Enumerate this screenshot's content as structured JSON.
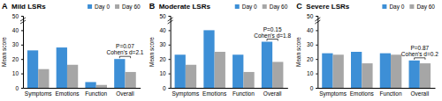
{
  "chart_data": [
    {
      "type": "bar",
      "panel_label": "A",
      "title": "Mild LSRs",
      "y_label": "Mean score",
      "categories": [
        "Symptoms",
        "Emotions",
        "Function",
        "Overall"
      ],
      "series": [
        {
          "name": "Day 0",
          "color": "#3d8fd6",
          "values": [
            26,
            28,
            4,
            20
          ]
        },
        {
          "name": "Day 60",
          "color": "#a6a6a6",
          "values": [
            13,
            16,
            2,
            11
          ]
        }
      ],
      "ylim": [
        0,
        50
      ],
      "yticks": [
        0,
        10,
        20,
        30,
        40,
        50
      ],
      "legend": "upper right",
      "annotations": [
        "P=0.07",
        "Cohen's d=2.1"
      ]
    },
    {
      "type": "bar",
      "panel_label": "B",
      "title": "Moderate LSRs",
      "y_label": "Mean score",
      "categories": [
        "Symptoms",
        "Emotions",
        "Function",
        "Overall"
      ],
      "series": [
        {
          "name": "Day 0",
          "color": "#3d8fd6",
          "values": [
            23,
            40,
            23,
            32
          ]
        },
        {
          "name": "Day 60",
          "color": "#a6a6a6",
          "values": [
            16,
            25,
            11,
            18
          ]
        }
      ],
      "ylim": [
        0,
        50
      ],
      "yticks": [
        0,
        10,
        20,
        30,
        40,
        50
      ],
      "legend": "upper right",
      "annotations": [
        "P=0.15",
        "Cohen's d=1.8"
      ]
    },
    {
      "type": "bar",
      "panel_label": "C",
      "title": "Severe LSRs",
      "y_label": "Mean score",
      "categories": [
        "Symptoms",
        "Emotions",
        "Function",
        "Overall"
      ],
      "series": [
        {
          "name": "Day 0",
          "color": "#3d8fd6",
          "values": [
            24,
            25,
            24,
            19
          ]
        },
        {
          "name": "Day 60",
          "color": "#a6a6a6",
          "values": [
            23,
            17,
            23,
            17
          ]
        }
      ],
      "ylim": [
        0,
        50
      ],
      "yticks": [
        0,
        10,
        20,
        30,
        40,
        50
      ],
      "legend": "upper right",
      "annotations": [
        "P=0.87",
        "Cohen's d=0.2"
      ]
    }
  ]
}
